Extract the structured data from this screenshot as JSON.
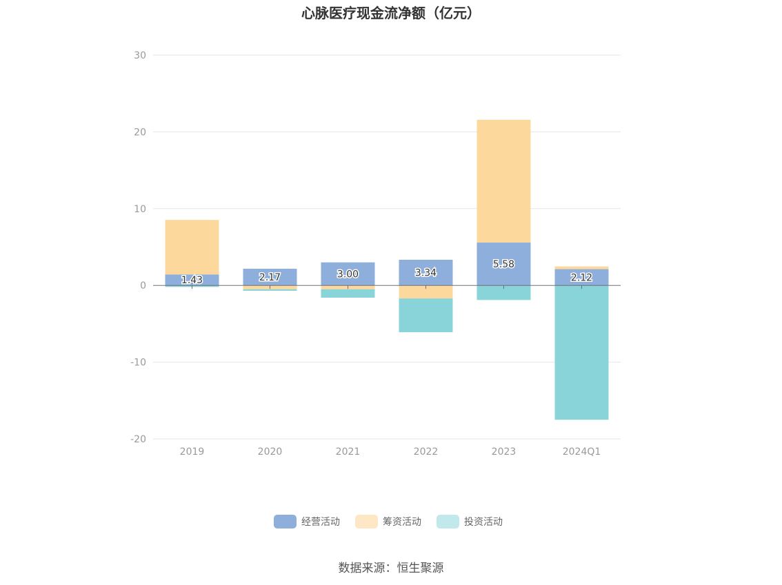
{
  "chart_data": {
    "type": "bar",
    "stacked": true,
    "title": "心脉医疗现金流净额（亿元）",
    "categories": [
      "2019",
      "2020",
      "2021",
      "2022",
      "2023",
      "2024Q1"
    ],
    "series": [
      {
        "name": "经营活动",
        "color": "#8eaedb",
        "values": [
          1.43,
          2.17,
          3.0,
          3.34,
          5.58,
          2.12
        ],
        "labels": [
          "1.43",
          "2.17",
          "3.00",
          "3.34",
          "5.58",
          "2.12"
        ]
      },
      {
        "name": "筹资活动",
        "color": "#fdd89c",
        "values": [
          7.1,
          -0.5,
          -0.5,
          -1.7,
          16.0,
          0.35
        ]
      },
      {
        "name": "投资活动",
        "color": "#88d4d8",
        "values": [
          -0.2,
          -0.2,
          -1.1,
          -4.4,
          -1.9,
          -17.5
        ]
      }
    ],
    "legend_colors": [
      "#8eaedb",
      "#fde7c4",
      "#c1e9eb"
    ],
    "ylim": [
      -20,
      30
    ],
    "yticks": [
      -20,
      -10,
      0,
      10,
      20,
      30
    ],
    "grid": true,
    "legend_position": "bottom"
  },
  "footer": {
    "source": "数据来源：恒生聚源"
  }
}
